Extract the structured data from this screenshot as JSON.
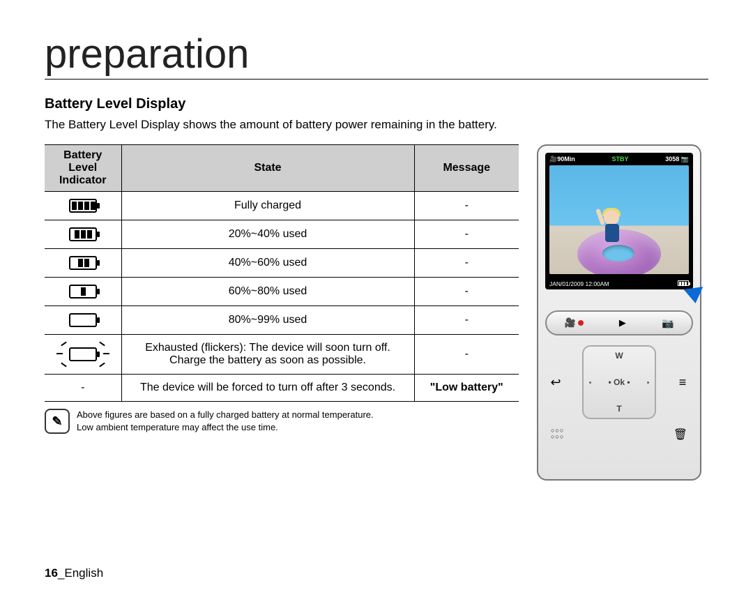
{
  "chapter_title": "preparation",
  "section_title": "Battery Level Display",
  "intro": "The Battery Level Display shows the amount of battery power remaining in the battery.",
  "table": {
    "headers": {
      "indicator": "Battery Level Indicator",
      "state": "State",
      "message": "Message"
    },
    "rows": [
      {
        "bars": 4,
        "flicker": false,
        "state": "Fully charged",
        "message": "-"
      },
      {
        "bars": 3,
        "flicker": false,
        "state": "20%~40% used",
        "message": "-"
      },
      {
        "bars": 2,
        "flicker": false,
        "state": "40%~60% used",
        "message": "-"
      },
      {
        "bars": 1,
        "flicker": false,
        "state": "60%~80% used",
        "message": "-"
      },
      {
        "bars": 0,
        "flicker": false,
        "state": "80%~99% used",
        "message": "-"
      },
      {
        "bars": 0,
        "flicker": true,
        "state": "Exhausted (flickers): The device will soon turn off. Charge the battery as soon as possible.",
        "message": "-"
      },
      {
        "bars": -1,
        "flicker": false,
        "state": "The device will be forced to turn off after 3 seconds.",
        "message": "\"Low battery\""
      }
    ]
  },
  "note": {
    "line1": "Above figures are based on a fully charged battery at normal temperature.",
    "line2": "Low ambient temperature may affect the use time."
  },
  "device": {
    "time_remaining": "90Min",
    "status": "STBY",
    "shots": "3058",
    "datetime": "JAN/01/2009 12:00AM",
    "ok_label": "Ok",
    "w_label": "W",
    "t_label": "T"
  },
  "footer": {
    "page_number": "16",
    "language": "English"
  },
  "colors": {
    "header_bg": "#cfcfcf",
    "pointer": "#0a6ad6",
    "stby": "#4bd94b",
    "record": "#d72020"
  }
}
